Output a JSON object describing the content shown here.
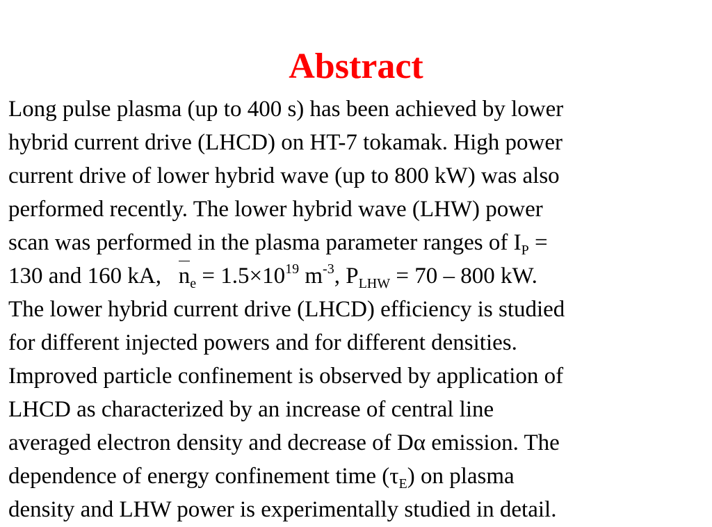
{
  "title": "Abstract",
  "lines": [
    "Long pulse plasma (up to 400 s) has been achieved by lower",
    "hybrid current drive (LHCD) on HT-7 tokamak. High power",
    "current drive of lower hybrid wave (up to 800 kW) was also",
    "performed recently. The lower hybrid wave (LHW) power",
    "scan was performed in the plasma parameter ranges of I",
    "P",
    " =",
    "130 and 160 kA,   ",
    "n",
    "e",
    " = 1.5×10",
    "19",
    " m",
    "-3",
    ", P",
    "LHW",
    " = 70 – 800 kW.",
    "The lower hybrid current drive (LHCD) efficiency is studied",
    "for different injected powers and for different densities.",
    "Improved particle confinement is observed by application of",
    "LHCD as characterized by an increase of central line",
    "averaged electron density and decrease of Dα emission. The",
    "dependence of energy confinement time (τ",
    "E",
    ") on plasma",
    "density and LHW power is experimentally studied in detail."
  ],
  "colors": {
    "title": "#ff0000",
    "text": "#000000",
    "background": "#ffffff"
  }
}
